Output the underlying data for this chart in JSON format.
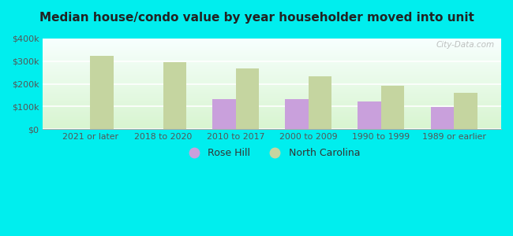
{
  "title": "Median house/condo value by year householder moved into unit",
  "categories": [
    "2021 or later",
    "2018 to 2020",
    "2010 to 2017",
    "2000 to 2009",
    "1990 to 1999",
    "1989 or earlier"
  ],
  "rose_hill": [
    null,
    null,
    133000,
    133000,
    122000,
    97000
  ],
  "north_carolina": [
    322000,
    297000,
    268000,
    232000,
    193000,
    160000
  ],
  "rose_hill_color": "#c9a0dc",
  "north_carolina_color": "#c5d5a0",
  "background_color": "#00eeee",
  "plot_bg_top": "#f8ffff",
  "plot_bg_bottom": "#d8f5d0",
  "ylim": [
    0,
    400000
  ],
  "yticks": [
    0,
    100000,
    200000,
    300000,
    400000
  ],
  "ytick_labels": [
    "$0",
    "$100k",
    "$200k",
    "$300k",
    "$400k"
  ],
  "watermark": "City-Data.com",
  "bar_width": 0.32,
  "title_color": "#222222",
  "tick_color": "#555555"
}
